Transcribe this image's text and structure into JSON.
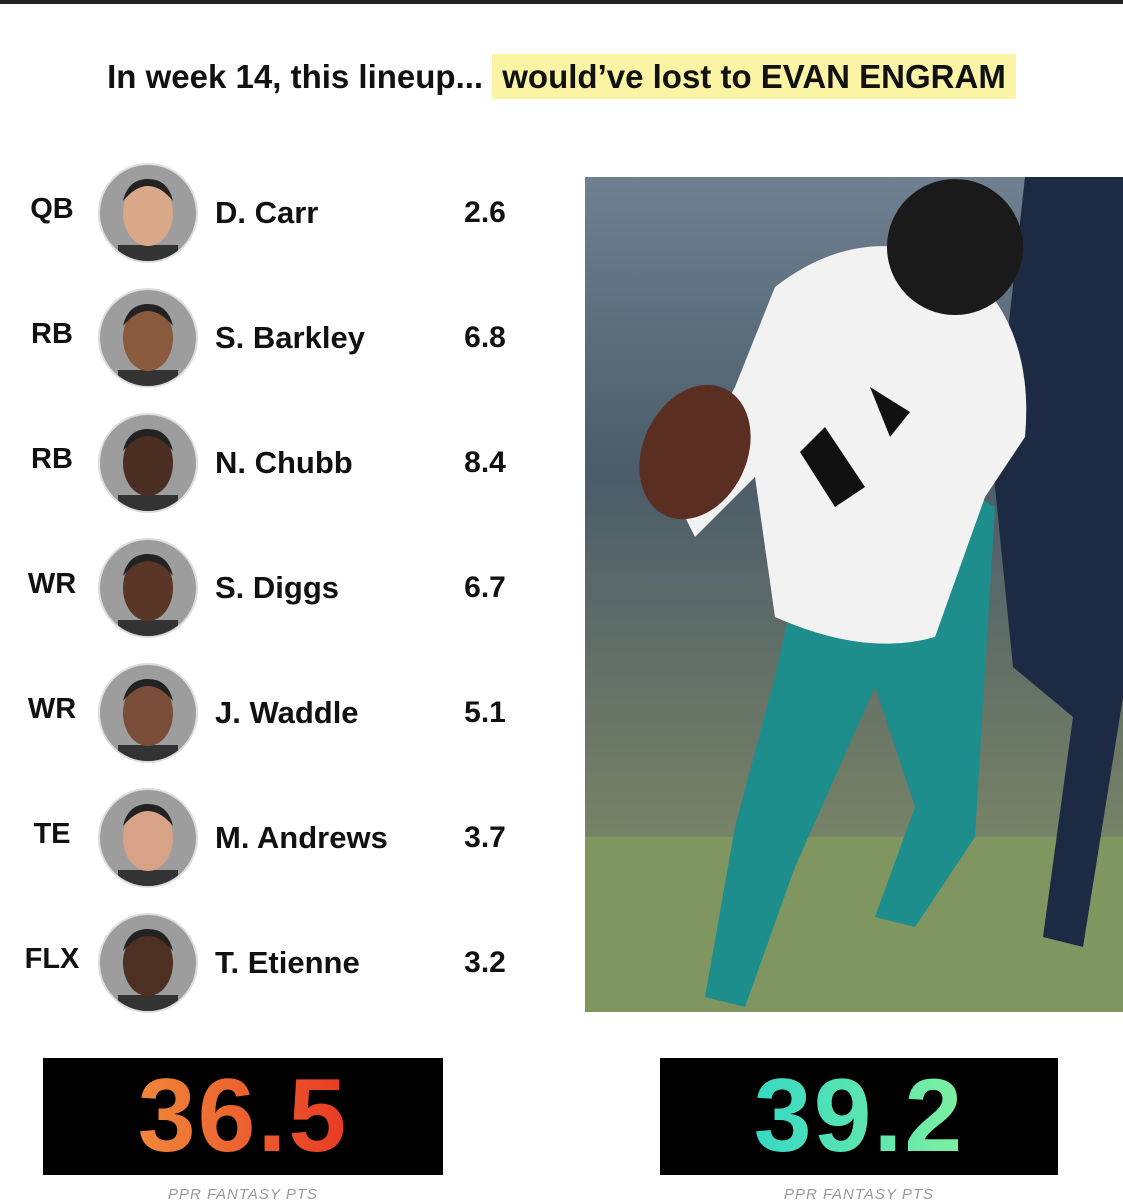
{
  "header": {
    "title_lead": "In week 14, this lineup...",
    "title_highlight": "would’ve lost to EVAN ENGRAM"
  },
  "lineup": [
    {
      "position": "QB",
      "name": "D. Carr",
      "points": 2.6
    },
    {
      "position": "RB",
      "name": "S. Barkley",
      "points": 6.8
    },
    {
      "position": "RB",
      "name": "N. Chubb",
      "points": 8.4
    },
    {
      "position": "WR",
      "name": "S. Diggs",
      "points": 6.7
    },
    {
      "position": "WR",
      "name": "J. Waddle",
      "points": 5.1
    },
    {
      "position": "TE",
      "name": "M. Andrews",
      "points": 3.7
    },
    {
      "position": "FLX",
      "name": "T. Etienne",
      "points": 3.2
    }
  ],
  "totals": [
    {
      "value": 36.5,
      "caption": "PPR FANTASY PTS"
    },
    {
      "value": 39.2,
      "caption": "PPR FANTASY PTS"
    }
  ]
}
